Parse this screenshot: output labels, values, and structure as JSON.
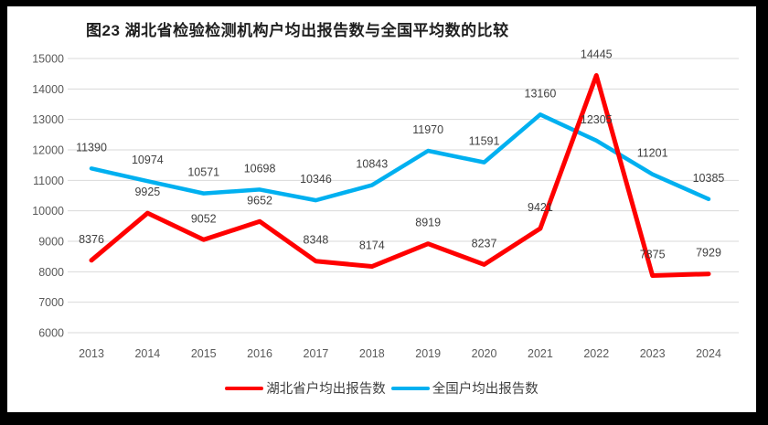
{
  "colors": {
    "frame": "#000000",
    "chart_background": "#FFFFFF",
    "gridline": "#D9D9D9",
    "axis_text": "#595959",
    "data_label_text": "#404040",
    "title_text": "#1F1F1F",
    "legend_text": "#404040"
  },
  "chart_data": {
    "type": "line",
    "title": "图23 湖北省检验检测机构户均出报告数与全国平均数的比较",
    "categories": [
      "2013",
      "2014",
      "2015",
      "2016",
      "2017",
      "2018",
      "2019",
      "2020",
      "2021",
      "2022",
      "2023",
      "2024"
    ],
    "series": [
      {
        "name": "湖北省户均出报告数",
        "color": "#FF0000",
        "values": [
          8376,
          9925,
          9052,
          9652,
          8348,
          8174,
          8919,
          8237,
          9421,
          14445,
          7875,
          7929
        ]
      },
      {
        "name": "全国户均出报告数",
        "color": "#00B0F0",
        "values": [
          11390,
          10974,
          10571,
          10698,
          10346,
          10843,
          11970,
          11591,
          13160,
          12305,
          11201,
          10385
        ]
      }
    ],
    "xlabel": "",
    "ylabel": "",
    "ylim": [
      6000,
      15000
    ],
    "ytick_step": 1000,
    "grid": "horizontal",
    "legend_position": "bottom",
    "data_labels": true
  }
}
